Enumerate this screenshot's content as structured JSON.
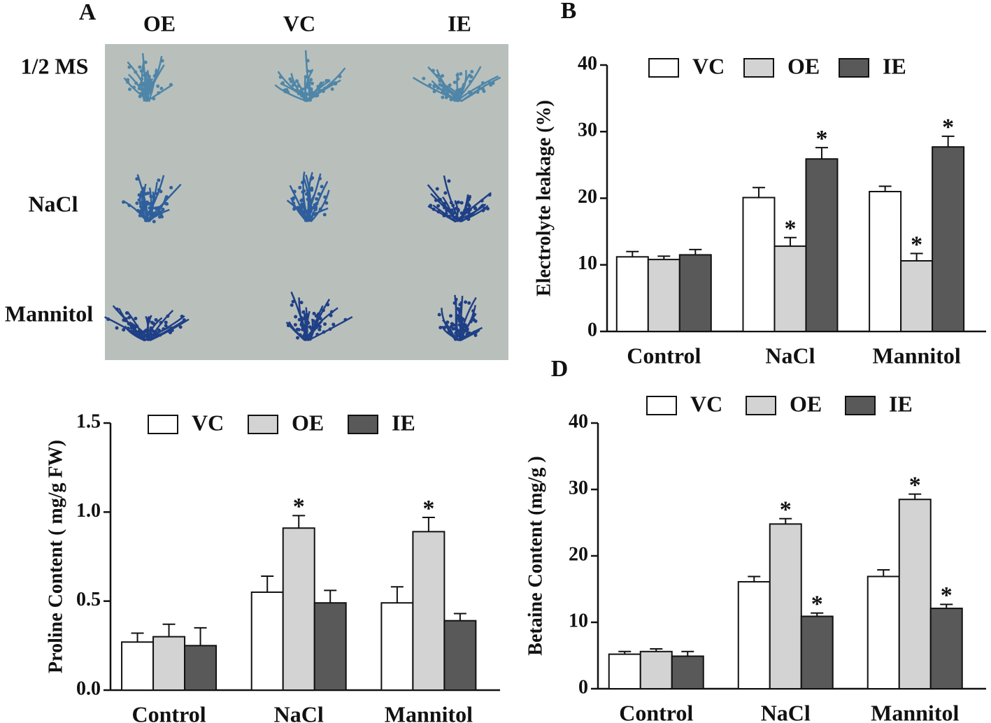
{
  "panel_a": {
    "panel_label": "A",
    "columns": [
      "OE",
      "VC",
      "IE"
    ],
    "rows": [
      "1/2 MS",
      "NaCl",
      "Mannitol"
    ]
  },
  "chart_data": [
    {
      "type": "bar",
      "panel_label": "B",
      "ylabel": "Electrolyte leakage (%)",
      "categories": [
        "Control",
        "NaCl",
        "Mannitol"
      ],
      "series": [
        {
          "name": "VC",
          "color": "#ffffff",
          "values": [
            11.2,
            20.1,
            21.0
          ],
          "errors": [
            0.8,
            1.5,
            0.8
          ],
          "significance": [
            null,
            null,
            null
          ]
        },
        {
          "name": "OE",
          "color": "#d3d3d3",
          "values": [
            10.8,
            12.8,
            10.6
          ],
          "errors": [
            0.5,
            1.3,
            1.1
          ],
          "significance": [
            null,
            "*",
            "*"
          ]
        },
        {
          "name": "IE",
          "color": "#595959",
          "values": [
            11.5,
            25.9,
            27.7
          ],
          "errors": [
            0.8,
            1.7,
            1.6
          ],
          "significance": [
            null,
            "*",
            "*"
          ]
        }
      ],
      "ylim": [
        0,
        40
      ],
      "yticks": [
        0,
        10,
        20,
        30,
        40
      ]
    },
    {
      "type": "bar",
      "ylabel": "Proline Content ( mg/g FW)",
      "categories": [
        "Control",
        "NaCl",
        "Mannitol"
      ],
      "series": [
        {
          "name": "VC",
          "color": "#ffffff",
          "values": [
            0.27,
            0.55,
            0.49
          ],
          "errors": [
            0.05,
            0.09,
            0.09
          ],
          "significance": [
            null,
            null,
            null
          ]
        },
        {
          "name": "OE",
          "color": "#d3d3d3",
          "values": [
            0.3,
            0.91,
            0.89
          ],
          "errors": [
            0.07,
            0.07,
            0.08
          ],
          "significance": [
            null,
            "*",
            "*"
          ]
        },
        {
          "name": "IE",
          "color": "#595959",
          "values": [
            0.25,
            0.49,
            0.39
          ],
          "errors": [
            0.1,
            0.07,
            0.04
          ],
          "significance": [
            null,
            null,
            null
          ]
        }
      ],
      "ylim": [
        0,
        1.5
      ],
      "yticks": [
        {
          "value": 0,
          "label": "0.0"
        },
        {
          "value": 0.5,
          "label": "0.5"
        },
        {
          "value": 1,
          "label": "1.0"
        },
        {
          "value": 1.5,
          "label": "1.5"
        }
      ]
    },
    {
      "type": "bar",
      "panel_label": "D",
      "ylabel": "Betaine Content (mg/g )",
      "categories": [
        "Control",
        "NaCl",
        "Mannitol"
      ],
      "series": [
        {
          "name": "VC",
          "color": "#ffffff",
          "values": [
            5.2,
            16.1,
            16.9
          ],
          "errors": [
            0.4,
            0.8,
            1.0
          ],
          "significance": [
            null,
            null,
            null
          ]
        },
        {
          "name": "OE",
          "color": "#d3d3d3",
          "values": [
            5.6,
            24.8,
            28.5
          ],
          "errors": [
            0.4,
            0.8,
            0.8
          ],
          "significance": [
            null,
            "*",
            "*"
          ]
        },
        {
          "name": "IE",
          "color": "#595959",
          "values": [
            4.9,
            10.9,
            12.1
          ],
          "errors": [
            0.7,
            0.5,
            0.6
          ],
          "significance": [
            null,
            "*",
            "*"
          ]
        }
      ],
      "ylim": [
        0,
        40
      ],
      "yticks": [
        0,
        10,
        20,
        30,
        40
      ]
    }
  ]
}
